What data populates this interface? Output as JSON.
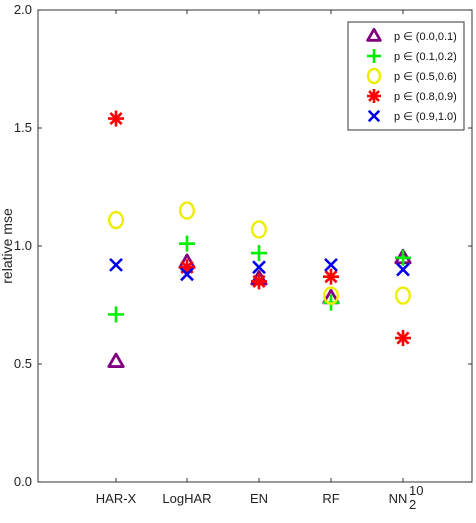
{
  "chart_data": {
    "type": "scatter",
    "title": "",
    "xlabel": "",
    "ylabel": "relative mse",
    "ylim": [
      0.0,
      2.0
    ],
    "yticks": [
      0.0,
      0.5,
      1.0,
      1.5,
      2.0
    ],
    "ytick_labels": [
      "0.0",
      "0.5",
      "1.0",
      "1.5",
      "2.0"
    ],
    "categories": [
      "HAR-X",
      "LogHAR",
      "EN",
      "RF",
      "NN"
    ],
    "nn_superscript": "10",
    "nn_subscript": "2",
    "grid": false,
    "legend_position": "top-right",
    "series": [
      {
        "name": "p ∈ (0.0,0.1)",
        "marker": "triangle",
        "color": "#800080",
        "values": [
          0.51,
          0.93,
          0.86,
          0.78,
          0.95
        ]
      },
      {
        "name": "p ∈ (0.1,0.2)",
        "marker": "plus",
        "color": "#00ee00",
        "values": [
          0.71,
          1.01,
          0.97,
          0.76,
          0.95
        ]
      },
      {
        "name": "p ∈ (0.5,0.6)",
        "marker": "circle",
        "color": "#eeee00",
        "values": [
          1.11,
          1.15,
          1.07,
          0.79,
          0.79
        ]
      },
      {
        "name": "p ∈ (0.8,0.9)",
        "marker": "asterisk",
        "color": "#ff0000",
        "values": [
          1.54,
          0.91,
          0.85,
          0.87,
          0.61
        ]
      },
      {
        "name": "p ∈ (0.9,1.0)",
        "marker": "x",
        "color": "#0000ee",
        "values": [
          0.92,
          0.88,
          0.91,
          0.92,
          0.9
        ]
      }
    ]
  }
}
